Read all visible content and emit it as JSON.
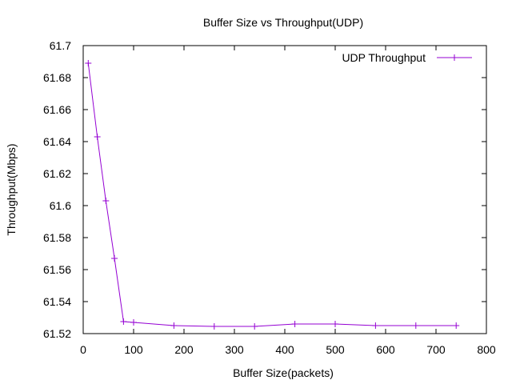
{
  "chart_data": {
    "type": "line",
    "title": "Buffer Size vs Throughput(UDP)",
    "xlabel": "Buffer Size(packets)",
    "ylabel": "Throughput(Mbps)",
    "xlim": [
      0,
      800
    ],
    "ylim": [
      61.52,
      61.7
    ],
    "xticks": [
      "0",
      "100",
      "200",
      "300",
      "400",
      "500",
      "600",
      "700",
      "800"
    ],
    "yticks": [
      "61.52",
      "61.54",
      "61.56",
      "61.58",
      "61.6",
      "61.62",
      "61.64",
      "61.66",
      "61.68",
      "61.7"
    ],
    "grid": false,
    "legend_position": "top-right",
    "series": [
      {
        "name": "UDP Throughput",
        "color": "#9400d3",
        "marker": "plus",
        "x": [
          10,
          28,
          45,
          62,
          80,
          100,
          180,
          260,
          340,
          420,
          500,
          580,
          660,
          740
        ],
        "y": [
          61.689,
          61.643,
          61.603,
          61.567,
          61.5275,
          61.527,
          61.525,
          61.5245,
          61.5245,
          61.526,
          61.526,
          61.525,
          61.525,
          61.525
        ]
      }
    ]
  }
}
